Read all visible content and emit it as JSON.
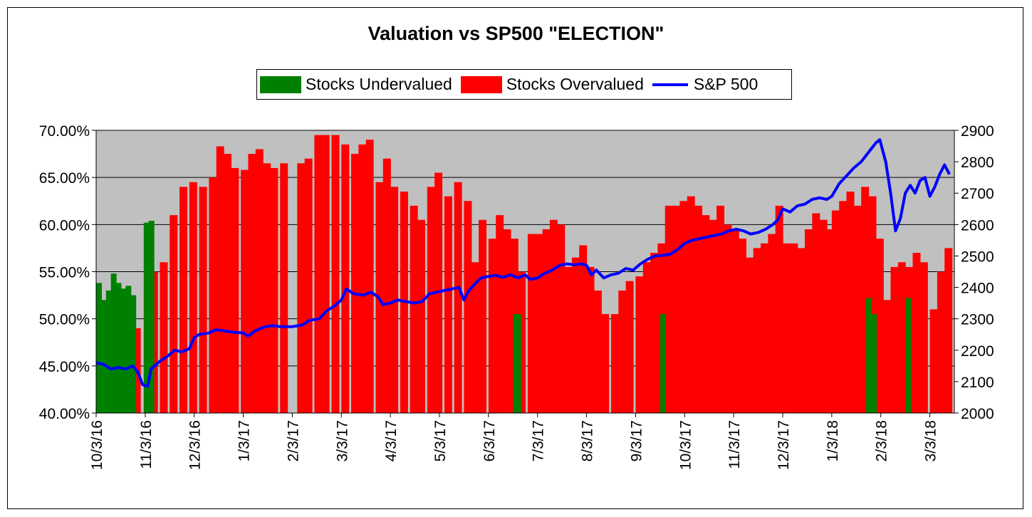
{
  "chart_data": {
    "type": "bar",
    "title": "Valuation vs SP500 \"ELECTION\"",
    "legend": {
      "placement": "top-center",
      "entries": [
        {
          "label": "Stocks Undervalued",
          "color": "#008000"
        },
        {
          "label": "Stocks Overvalued",
          "color": "#ff0000"
        },
        {
          "label": "S&P 500",
          "color": "#0000ff"
        }
      ]
    },
    "y_left": {
      "min": 0.4,
      "max": 0.7,
      "ticks": [
        "40.00%",
        "45.00%",
        "50.00%",
        "55.00%",
        "60.00%",
        "65.00%",
        "70.00%"
      ]
    },
    "y_right": {
      "min": 2000,
      "max": 2900,
      "ticks": [
        "2000",
        "2100",
        "2200",
        "2300",
        "2400",
        "2500",
        "2600",
        "2700",
        "2800",
        "2900"
      ]
    },
    "x_ticks": [
      "10/3/16",
      "11/3/16",
      "12/3/16",
      "1/3/17",
      "2/3/17",
      "3/3/17",
      "4/3/17",
      "5/3/17",
      "6/3/17",
      "7/3/17",
      "8/3/17",
      "9/3/17",
      "10/3/17",
      "11/3/17",
      "12/3/17",
      "1/3/18",
      "2/3/18",
      "3/3/18"
    ],
    "x_tick_months": [
      0,
      1,
      2,
      3,
      4,
      5,
      6,
      7,
      8,
      9,
      10,
      11,
      12,
      13,
      14,
      15,
      16,
      17
    ],
    "x_range_months": [
      0,
      17.5
    ],
    "grid": "horizontal",
    "plot_background": "#c0c0c0",
    "series": [
      {
        "name": "Stocks Undervalued",
        "style": "bar",
        "axis": "left",
        "color": "#008000",
        "points": [
          [
            0.0,
            0.538
          ],
          [
            0.1,
            0.52
          ],
          [
            0.2,
            0.53
          ],
          [
            0.3,
            0.548
          ],
          [
            0.4,
            0.538
          ],
          [
            0.5,
            0.532
          ],
          [
            0.6,
            0.535
          ],
          [
            0.7,
            0.525
          ],
          [
            0.97,
            0.602
          ],
          [
            1.07,
            0.604
          ],
          [
            8.5,
            0.505
          ],
          [
            8.55,
            0.505
          ],
          [
            11.5,
            0.505
          ],
          [
            15.7,
            0.522
          ],
          [
            15.8,
            0.505
          ],
          [
            16.5,
            0.522
          ]
        ]
      },
      {
        "name": "Stocks Overvalued",
        "style": "bar",
        "axis": "left",
        "color": "#ff0000",
        "points": [
          [
            0.0,
            0.485
          ],
          [
            0.2,
            0.475
          ],
          [
            0.4,
            0.475
          ],
          [
            0.6,
            0.48
          ],
          [
            0.75,
            0.49
          ],
          [
            1.1,
            0.55
          ],
          [
            1.3,
            0.56
          ],
          [
            1.5,
            0.61
          ],
          [
            1.7,
            0.64
          ],
          [
            1.9,
            0.645
          ],
          [
            2.1,
            0.64
          ],
          [
            2.3,
            0.65
          ],
          [
            2.45,
            0.683
          ],
          [
            2.6,
            0.675
          ],
          [
            2.75,
            0.66
          ],
          [
            2.95,
            0.658
          ],
          [
            3.1,
            0.675
          ],
          [
            3.25,
            0.68
          ],
          [
            3.4,
            0.665
          ],
          [
            3.55,
            0.66
          ],
          [
            3.75,
            0.665
          ],
          [
            4.1,
            0.665
          ],
          [
            4.25,
            0.67
          ],
          [
            4.45,
            0.695
          ],
          [
            4.6,
            0.695
          ],
          [
            4.8,
            0.695
          ],
          [
            5.0,
            0.685
          ],
          [
            5.2,
            0.675
          ],
          [
            5.35,
            0.685
          ],
          [
            5.5,
            0.69
          ],
          [
            5.7,
            0.645
          ],
          [
            5.85,
            0.67
          ],
          [
            6.0,
            0.64
          ],
          [
            6.2,
            0.635
          ],
          [
            6.4,
            0.62
          ],
          [
            6.55,
            0.605
          ],
          [
            6.75,
            0.64
          ],
          [
            6.9,
            0.655
          ],
          [
            7.1,
            0.63
          ],
          [
            7.3,
            0.645
          ],
          [
            7.5,
            0.625
          ],
          [
            7.65,
            0.56
          ],
          [
            7.8,
            0.605
          ],
          [
            8.0,
            0.585
          ],
          [
            8.15,
            0.61
          ],
          [
            8.3,
            0.595
          ],
          [
            8.45,
            0.585
          ],
          [
            8.6,
            0.55
          ],
          [
            8.8,
            0.59
          ],
          [
            8.95,
            0.59
          ],
          [
            9.1,
            0.595
          ],
          [
            9.25,
            0.605
          ],
          [
            9.4,
            0.6
          ],
          [
            9.55,
            0.555
          ],
          [
            9.7,
            0.565
          ],
          [
            9.85,
            0.578
          ],
          [
            10.0,
            0.555
          ],
          [
            10.15,
            0.53
          ],
          [
            10.3,
            0.505
          ],
          [
            10.5,
            0.505
          ],
          [
            10.65,
            0.53
          ],
          [
            10.8,
            0.54
          ],
          [
            11.0,
            0.545
          ],
          [
            11.15,
            0.56
          ],
          [
            11.3,
            0.57
          ],
          [
            11.45,
            0.58
          ],
          [
            11.6,
            0.62
          ],
          [
            11.75,
            0.62
          ],
          [
            11.9,
            0.625
          ],
          [
            12.05,
            0.63
          ],
          [
            12.2,
            0.62
          ],
          [
            12.35,
            0.61
          ],
          [
            12.5,
            0.605
          ],
          [
            12.65,
            0.62
          ],
          [
            12.8,
            0.6
          ],
          [
            12.95,
            0.595
          ],
          [
            13.1,
            0.585
          ],
          [
            13.25,
            0.565
          ],
          [
            13.4,
            0.575
          ],
          [
            13.55,
            0.58
          ],
          [
            13.7,
            0.59
          ],
          [
            13.85,
            0.62
          ],
          [
            14.0,
            0.58
          ],
          [
            14.15,
            0.58
          ],
          [
            14.3,
            0.575
          ],
          [
            14.45,
            0.595
          ],
          [
            14.6,
            0.612
          ],
          [
            14.75,
            0.605
          ],
          [
            14.9,
            0.595
          ],
          [
            15.0,
            0.615
          ],
          [
            15.15,
            0.625
          ],
          [
            15.3,
            0.635
          ],
          [
            15.45,
            0.62
          ],
          [
            15.6,
            0.64
          ],
          [
            15.75,
            0.63
          ],
          [
            15.9,
            0.585
          ],
          [
            16.05,
            0.52
          ],
          [
            16.2,
            0.555
          ],
          [
            16.35,
            0.56
          ],
          [
            16.5,
            0.555
          ],
          [
            16.65,
            0.57
          ],
          [
            16.8,
            0.56
          ],
          [
            17.0,
            0.51
          ],
          [
            17.15,
            0.55
          ],
          [
            17.3,
            0.575
          ]
        ]
      },
      {
        "name": "S&P 500",
        "style": "line",
        "axis": "right",
        "color": "#0000ff",
        "points": [
          [
            0.0,
            2160
          ],
          [
            0.15,
            2155
          ],
          [
            0.3,
            2140
          ],
          [
            0.45,
            2145
          ],
          [
            0.6,
            2140
          ],
          [
            0.75,
            2150
          ],
          [
            0.85,
            2130
          ],
          [
            0.95,
            2090
          ],
          [
            1.05,
            2085
          ],
          [
            1.12,
            2140
          ],
          [
            1.3,
            2165
          ],
          [
            1.45,
            2180
          ],
          [
            1.6,
            2200
          ],
          [
            1.75,
            2195
          ],
          [
            1.9,
            2205
          ],
          [
            2.0,
            2240
          ],
          [
            2.1,
            2250
          ],
          [
            2.3,
            2255
          ],
          [
            2.45,
            2265
          ],
          [
            2.6,
            2262
          ],
          [
            2.75,
            2258
          ],
          [
            3.0,
            2255
          ],
          [
            3.1,
            2245
          ],
          [
            3.25,
            2262
          ],
          [
            3.45,
            2275
          ],
          [
            3.6,
            2278
          ],
          [
            3.75,
            2275
          ],
          [
            4.0,
            2275
          ],
          [
            4.2,
            2280
          ],
          [
            4.35,
            2295
          ],
          [
            4.55,
            2300
          ],
          [
            4.7,
            2325
          ],
          [
            4.85,
            2340
          ],
          [
            5.0,
            2360
          ],
          [
            5.1,
            2395
          ],
          [
            5.25,
            2380
          ],
          [
            5.45,
            2375
          ],
          [
            5.6,
            2385
          ],
          [
            5.75,
            2370
          ],
          [
            5.85,
            2345
          ],
          [
            6.0,
            2350
          ],
          [
            6.15,
            2360
          ],
          [
            6.3,
            2355
          ],
          [
            6.5,
            2350
          ],
          [
            6.65,
            2355
          ],
          [
            6.8,
            2380
          ],
          [
            6.95,
            2385
          ],
          [
            7.1,
            2390
          ],
          [
            7.25,
            2395
          ],
          [
            7.4,
            2400
          ],
          [
            7.5,
            2360
          ],
          [
            7.6,
            2390
          ],
          [
            7.75,
            2415
          ],
          [
            7.85,
            2430
          ],
          [
            8.0,
            2435
          ],
          [
            8.15,
            2438
          ],
          [
            8.3,
            2432
          ],
          [
            8.45,
            2440
          ],
          [
            8.6,
            2430
          ],
          [
            8.75,
            2440
          ],
          [
            8.85,
            2425
          ],
          [
            9.0,
            2430
          ],
          [
            9.15,
            2445
          ],
          [
            9.3,
            2455
          ],
          [
            9.45,
            2470
          ],
          [
            9.6,
            2475
          ],
          [
            9.75,
            2472
          ],
          [
            9.9,
            2475
          ],
          [
            10.0,
            2470
          ],
          [
            10.1,
            2440
          ],
          [
            10.2,
            2455
          ],
          [
            10.35,
            2430
          ],
          [
            10.5,
            2440
          ],
          [
            10.65,
            2445
          ],
          [
            10.8,
            2460
          ],
          [
            10.95,
            2455
          ],
          [
            11.1,
            2475
          ],
          [
            11.25,
            2490
          ],
          [
            11.4,
            2500
          ],
          [
            11.55,
            2502
          ],
          [
            11.7,
            2505
          ],
          [
            11.85,
            2520
          ],
          [
            12.0,
            2540
          ],
          [
            12.15,
            2550
          ],
          [
            12.3,
            2555
          ],
          [
            12.45,
            2560
          ],
          [
            12.6,
            2565
          ],
          [
            12.75,
            2570
          ],
          [
            12.9,
            2580
          ],
          [
            13.05,
            2585
          ],
          [
            13.2,
            2580
          ],
          [
            13.35,
            2570
          ],
          [
            13.5,
            2575
          ],
          [
            13.65,
            2585
          ],
          [
            13.8,
            2600
          ],
          [
            13.9,
            2615
          ],
          [
            14.0,
            2650
          ],
          [
            14.15,
            2640
          ],
          [
            14.3,
            2660
          ],
          [
            14.45,
            2665
          ],
          [
            14.6,
            2680
          ],
          [
            14.75,
            2685
          ],
          [
            14.9,
            2680
          ],
          [
            15.0,
            2690
          ],
          [
            15.15,
            2730
          ],
          [
            15.3,
            2755
          ],
          [
            15.45,
            2780
          ],
          [
            15.6,
            2800
          ],
          [
            15.75,
            2830
          ],
          [
            15.9,
            2860
          ],
          [
            15.98,
            2870
          ],
          [
            16.1,
            2800
          ],
          [
            16.2,
            2700
          ],
          [
            16.3,
            2580
          ],
          [
            16.4,
            2620
          ],
          [
            16.5,
            2700
          ],
          [
            16.6,
            2725
          ],
          [
            16.7,
            2700
          ],
          [
            16.8,
            2740
          ],
          [
            16.9,
            2750
          ],
          [
            17.0,
            2690
          ],
          [
            17.1,
            2720
          ],
          [
            17.2,
            2760
          ],
          [
            17.3,
            2790
          ],
          [
            17.4,
            2760
          ]
        ]
      }
    ]
  }
}
